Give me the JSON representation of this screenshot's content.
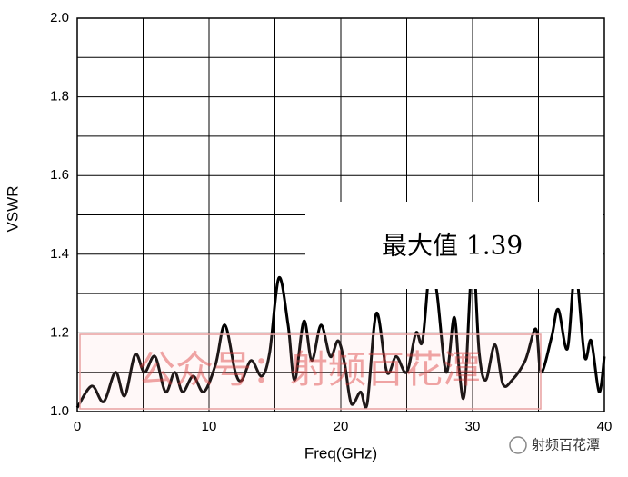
{
  "chart_data": {
    "type": "line",
    "xlabel": "Freq(GHz)",
    "ylabel": "VSWR",
    "x": [
      0,
      1.1,
      2.0,
      2.9,
      3.6,
      4.4,
      5.1,
      5.9,
      6.7,
      7.4,
      8.0,
      8.8,
      9.6,
      10.5,
      11.2,
      12.0,
      12.5,
      13.2,
      14.0,
      14.6,
      15.3,
      16.0,
      16.5,
      17.2,
      17.8,
      18.5,
      19.2,
      19.8,
      20.3,
      20.8,
      21.5,
      22.0,
      22.7,
      23.5,
      24.2,
      25.0,
      25.7,
      26.2,
      26.8,
      27.3,
      28.0,
      28.6,
      29.0,
      29.4,
      30.0,
      30.5,
      31.0,
      31.7,
      32.3,
      33.0,
      34.0,
      34.8,
      35.2,
      36.0,
      36.5,
      37.2,
      37.8,
      38.5,
      39.0,
      39.6,
      40.0
    ],
    "values": [
      1.01,
      1.065,
      1.025,
      1.1,
      1.04,
      1.145,
      1.1,
      1.14,
      1.05,
      1.1,
      1.05,
      1.09,
      1.05,
      1.12,
      1.22,
      1.1,
      1.08,
      1.13,
      1.09,
      1.15,
      1.34,
      1.22,
      1.08,
      1.23,
      1.13,
      1.22,
      1.14,
      1.18,
      1.12,
      1.02,
      1.05,
      1.02,
      1.25,
      1.1,
      1.14,
      1.1,
      1.2,
      1.18,
      1.38,
      1.3,
      1.1,
      1.24,
      1.1,
      1.05,
      1.39,
      1.15,
      1.08,
      1.17,
      1.07,
      1.08,
      1.13,
      1.21,
      1.1,
      1.19,
      1.26,
      1.16,
      1.36,
      1.14,
      1.18,
      1.05,
      1.14
    ],
    "color": "#000000",
    "xlim": [
      0,
      40
    ],
    "ylim": [
      1,
      2
    ],
    "xticks": [
      0,
      10,
      20,
      30,
      40
    ],
    "xminorticks": [
      5,
      15,
      25,
      35
    ],
    "yticks": [
      {
        "value": 1,
        "label": "1.0"
      },
      {
        "value": 1.2,
        "label": "1.2"
      },
      {
        "value": 1.4,
        "label": "1.4"
      },
      {
        "value": 1.6,
        "label": "1.6"
      },
      {
        "value": 1.8,
        "label": "1.8"
      },
      {
        "value": 2,
        "label": "2.0"
      }
    ],
    "yminorticks": [
      1.1,
      1.3,
      1.5,
      1.7,
      1.9
    ],
    "grid": true,
    "annotation": "最大值 1.39"
  },
  "watermark": "公众号：射频百花潭",
  "logo_text": "射频百花潭"
}
